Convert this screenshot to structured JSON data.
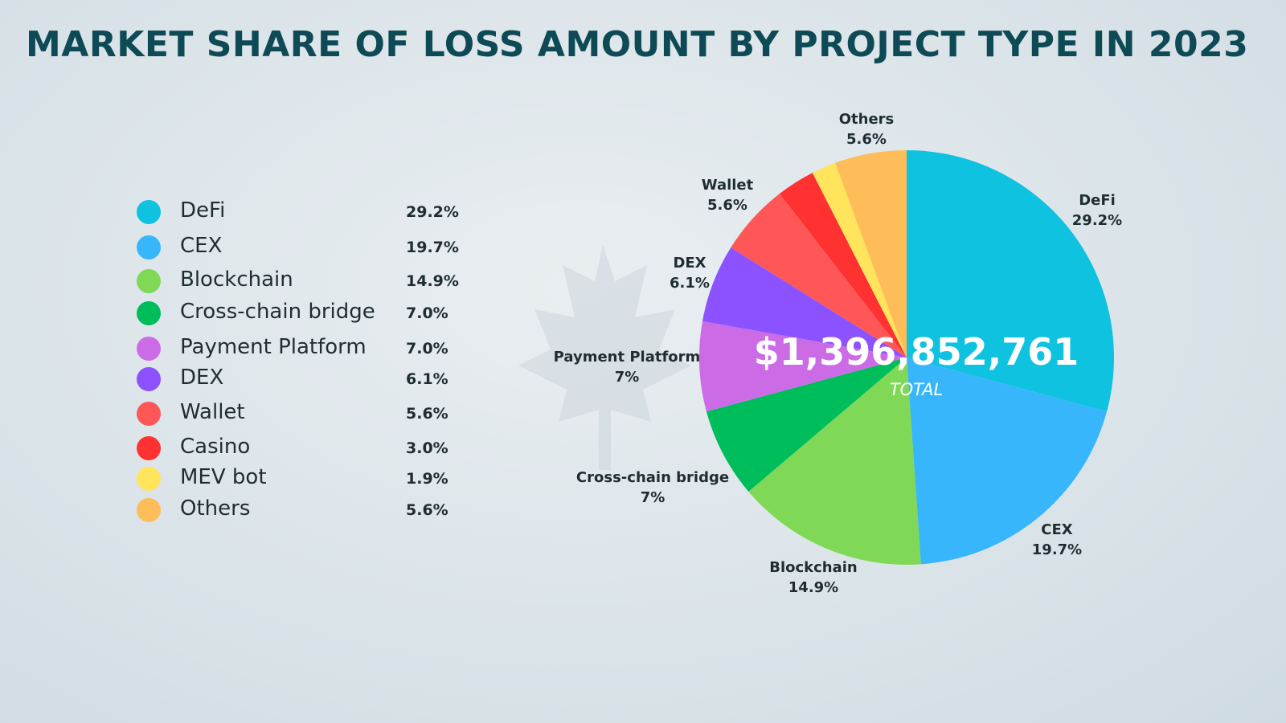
{
  "title": "MARKET SHARE OF LOSS AMOUNT BY PROJECT TYPE IN 2023",
  "total": {
    "value": "$1,396,852,761",
    "caption": "TOTAL"
  },
  "chart_data": {
    "type": "pie",
    "title": "MARKET SHARE OF LOSS AMOUNT BY PROJECT TYPE IN 2023",
    "categories": [
      "DeFi",
      "CEX",
      "Blockchain",
      "Cross-chain bridge",
      "Payment Platform",
      "DEX",
      "Wallet",
      "Casino",
      "MEV bot",
      "Others"
    ],
    "values": [
      29.2,
      19.7,
      14.9,
      7.0,
      7.0,
      6.1,
      5.6,
      3.0,
      1.9,
      5.6
    ],
    "colors": [
      "#0ec2e0",
      "#38b6fb",
      "#7fd957",
      "#00bd5c",
      "#cb6ce6",
      "#8c52ff",
      "#ff5757",
      "#ff3131",
      "#ffe45c",
      "#ffbd59"
    ],
    "legend_position": "left",
    "legend": [
      {
        "label": "DeFi",
        "pct": "29.2%",
        "color": "#0ec2e0"
      },
      {
        "label": "CEX",
        "pct": "19.7%",
        "color": "#38b6fb"
      },
      {
        "label": "Blockchain",
        "pct": "14.9%",
        "color": "#7fd957"
      },
      {
        "label": "Cross-chain bridge",
        "pct": "7.0%",
        "color": "#00bd5c"
      },
      {
        "label": "Payment Platform",
        "pct": "7.0%",
        "color": "#cb6ce6"
      },
      {
        "label": "DEX",
        "pct": "6.1%",
        "color": "#8c52ff"
      },
      {
        "label": "Wallet",
        "pct": "5.6%",
        "color": "#ff5757"
      },
      {
        "label": "Casino",
        "pct": "3.0%",
        "color": "#ff3131"
      },
      {
        "label": "MEV bot",
        "pct": "1.9%",
        "color": "#ffe45c"
      },
      {
        "label": "Others",
        "pct": "5.6%",
        "color": "#ffbd59"
      }
    ],
    "slice_labels": [
      {
        "name": "DeFi",
        "pct": "29.2%"
      },
      {
        "name": "CEX",
        "pct": "19.7%"
      },
      {
        "name": "Blockchain",
        "pct": "14.9%"
      },
      {
        "name": "Cross-chain bridge",
        "pct": "7%"
      },
      {
        "name": "Payment Platform",
        "pct": "7%"
      },
      {
        "name": "DEX",
        "pct": "6.1%"
      },
      {
        "name": "Wallet",
        "pct": "5.6%"
      },
      {
        "name": "Others",
        "pct": "5.6%"
      }
    ]
  }
}
